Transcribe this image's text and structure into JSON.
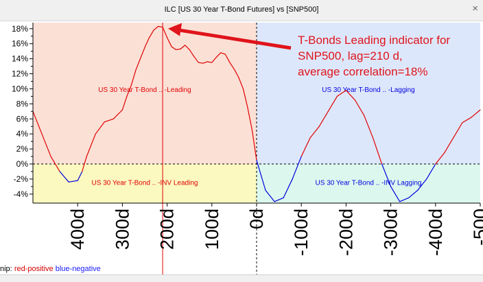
{
  "window": {
    "title": "ILC [US 30 Year T-Bond Futures] vs [SNP500]",
    "close_glyph": "×"
  },
  "legend": {
    "prefix": "nip:",
    "positive_label": "red-positive",
    "negative_label": "blue-negative"
  },
  "colors": {
    "leading_bg": "#fbe0d6",
    "lagging_bg": "#dde7fb",
    "inv_leading_bg": "#fbf9c0",
    "inv_lagging_bg": "#dcf8ee",
    "positive": "#e00000",
    "negative": "#0000dd",
    "annotation": "#e0141b"
  },
  "chart_data": {
    "type": "line",
    "title": "ILC [US 30 Year T-Bond Futures] vs [SNP500]",
    "xlabel": "",
    "ylabel": "",
    "xlim": [
      500,
      -500
    ],
    "ylim": [
      -5.2,
      18.8
    ],
    "y_ticks": [
      "18%",
      "16%",
      "14%",
      "12%",
      "10%",
      "8%",
      "6%",
      "4%",
      "2%",
      "0%",
      "-2%",
      "-4%"
    ],
    "x_ticks": [
      "400d",
      "300d",
      "200d",
      "100d",
      "0d",
      "-100d",
      "-200d",
      "-300d",
      "-400d",
      "-500"
    ],
    "x_tick_values": [
      400,
      300,
      200,
      100,
      0,
      -100,
      -200,
      -300,
      -400,
      -500
    ],
    "y_tick_values": [
      18,
      16,
      14,
      12,
      10,
      8,
      6,
      4,
      2,
      0,
      -2,
      -4
    ],
    "region_labels": {
      "leading": "US 30 Year T-Bond .. -Leading",
      "lagging": "US 30 Year T-Bond .. -Lagging",
      "inv_leading": "US 30 Year T-Bond .. -INV Leading",
      "inv_lagging": "US 30 Year T-Bond .. -INV Lagging"
    },
    "marker_lag": 210,
    "annotation": {
      "lines": [
        "T-Bonds Leading indicator for",
        "SNP500, lag=210 d,",
        "average correlation=18%"
      ],
      "points_to": [
        210,
        18.2
      ]
    },
    "series": [
      {
        "x": [
          500,
          480,
          460,
          440,
          420,
          400,
          390,
          380,
          360,
          340,
          320,
          300,
          290,
          280,
          270,
          260,
          250,
          240,
          230,
          220,
          210,
          200,
          190,
          180,
          170,
          160,
          150,
          140,
          130,
          120,
          110,
          100,
          90,
          80,
          70,
          60,
          50,
          40,
          30,
          20,
          10,
          0,
          -20,
          -40,
          -60,
          -80,
          -100,
          -120,
          -140,
          -160,
          -180,
          -200,
          -220,
          -240,
          -260,
          -280,
          -300,
          -320,
          -340,
          -360,
          -380,
          -400,
          -420,
          -440,
          -460,
          -480,
          -500
        ],
        "y": [
          7.0,
          4.0,
          1.0,
          -1.0,
          -2.4,
          -2.2,
          -1.0,
          1.0,
          4.0,
          5.6,
          6.0,
          7.2,
          9.0,
          10.5,
          12.5,
          14.0,
          15.5,
          16.8,
          17.8,
          18.3,
          18.2,
          16.8,
          15.6,
          15.2,
          15.3,
          15.8,
          15.2,
          14.3,
          13.5,
          13.4,
          13.6,
          13.5,
          14.2,
          14.8,
          14.6,
          13.5,
          12.6,
          11.5,
          10.0,
          7.5,
          4.5,
          0.5,
          -3.5,
          -5.0,
          -4.5,
          -2.0,
          1.0,
          3.5,
          5.0,
          7.0,
          9.0,
          9.8,
          8.5,
          6.5,
          3.5,
          0.0,
          -3.0,
          -5.0,
          -4.5,
          -3.5,
          -2.0,
          0.0,
          1.5,
          3.5,
          5.5,
          6.2,
          7.2
        ]
      }
    ]
  }
}
